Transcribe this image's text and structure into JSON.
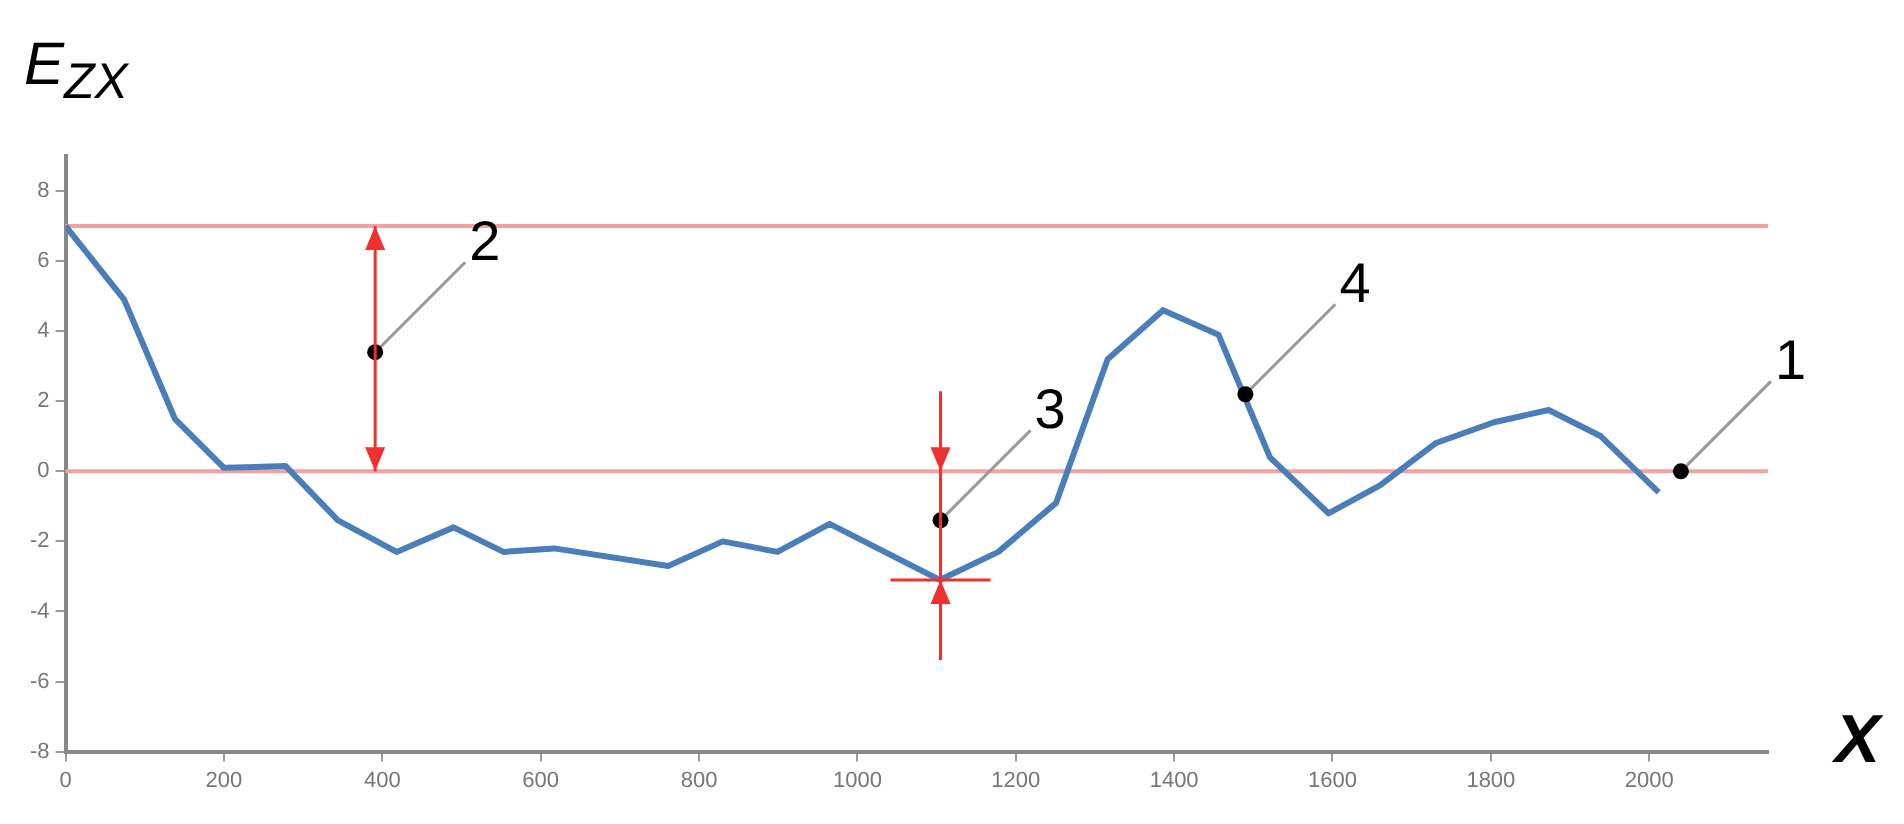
{
  "chart_data": {
    "type": "line",
    "ylabel": "E$_{ZX}$",
    "xlabel": "X",
    "x": [
      0,
      74,
      138,
      200,
      278,
      344,
      418,
      490,
      553,
      617,
      761,
      830,
      899,
      965,
      1104,
      1178,
      1251,
      1316,
      1386,
      1456,
      1521,
      1595,
      1660,
      1730,
      1804,
      1873,
      1939,
      2012
    ],
    "series": [
      {
        "color": "#4a7ebb",
        "values": [
          7,
          4.9,
          1.5,
          0.1,
          0.15,
          -1.4,
          -2.3,
          -1.6,
          -2.3,
          -2.2,
          -2.7,
          -2.0,
          -2.3,
          -1.5,
          -3.1,
          -2.3,
          -0.9,
          3.2,
          4.6,
          3.9,
          0.4,
          -1.2,
          -0.4,
          0.8,
          1.4,
          1.75,
          1.0,
          -0.6
        ]
      }
    ],
    "xlim": [
      0,
      2150
    ],
    "xticks": [
      0,
      200,
      400,
      600,
      800,
      1000,
      1200,
      1400,
      1600,
      1800,
      2000
    ],
    "ylim": [
      -8,
      9
    ],
    "yticks": [
      -8,
      -6,
      -4,
      -2,
      0,
      2,
      4,
      6,
      8
    ],
    "grid": false,
    "legend": false,
    "marker": "none",
    "line_style": "solid",
    "ref_lines": [
      {
        "axis": "y",
        "value": 7,
        "color": "#f4a0a0"
      },
      {
        "axis": "y",
        "value": 0,
        "color": "#f4a0a0"
      }
    ],
    "annotations": [
      {
        "text": "1",
        "x": 2040,
        "y": 0
      },
      {
        "text": "2",
        "x": 391,
        "y": 3.4
      },
      {
        "text": "3",
        "x": 1105,
        "y": -1.4
      },
      {
        "text": "4",
        "x": 1490,
        "y": 2.2
      }
    ]
  }
}
